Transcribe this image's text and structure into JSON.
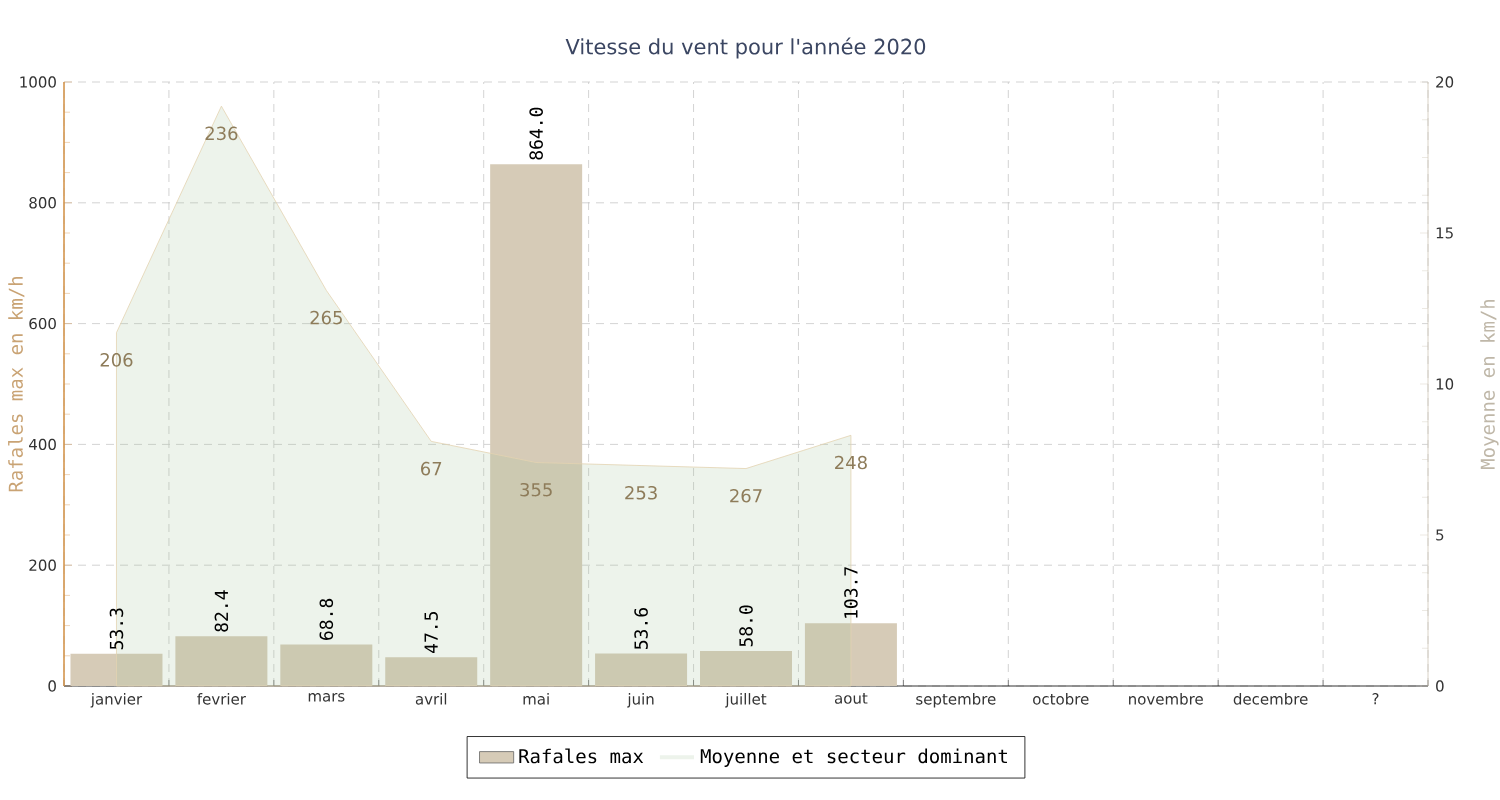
{
  "chart_data": {
    "type": "bar",
    "title": "Vitesse du vent pour l'année 2020",
    "ylabel": "Rafales max en km/h",
    "y2label": "Moyenne en km/h",
    "categories": [
      "janvier",
      "fevrier",
      "mars",
      "avril",
      "mai",
      "juin",
      "juillet",
      "aout",
      "septembre",
      "octobre",
      "novembre",
      "decembre",
      "?"
    ],
    "series": [
      {
        "name": "Rafales max",
        "color": "#d6cbb7",
        "values": [
          53.3,
          82.4,
          68.8,
          47.5,
          864.0,
          53.6,
          58.0,
          103.7,
          null,
          null,
          null,
          null,
          null
        ],
        "value_labels": [
          "53.3",
          "82.4",
          "68.8",
          "47.5",
          "864.0",
          "53.6",
          "58.0",
          "103.7",
          null,
          null,
          null,
          null,
          null
        ]
      },
      {
        "name": "Moyenne et secteur dominant",
        "type": "area",
        "axis": "y2",
        "color": "#edf3eb",
        "values": [
          11.7,
          19.2,
          13.1,
          8.1,
          7.4,
          7.3,
          7.2,
          8.3,
          null,
          null,
          null,
          null,
          null
        ]
      }
    ],
    "annotations": [
      {
        "text": "206",
        "x": "janvier",
        "y": 585
      },
      {
        "text": "236",
        "x": "fevrier",
        "y": 960
      },
      {
        "text": "265",
        "x": "mars",
        "y": 655
      },
      {
        "text": "67",
        "x": "avril",
        "y": 405
      },
      {
        "text": "355",
        "x": "mai",
        "y": 370
      },
      {
        "text": "253",
        "x": "juin",
        "y": 365
      },
      {
        "text": "267",
        "x": "juillet",
        "y": 360
      },
      {
        "text": "248",
        "x": "aout",
        "y": 415
      }
    ],
    "ylim": [
      0,
      1000
    ],
    "yticks": [
      0,
      200,
      400,
      600,
      800,
      1000
    ],
    "y2lim": [
      0,
      20
    ],
    "y2ticks": [
      0,
      5,
      10,
      15,
      20
    ],
    "grid": true,
    "legend": "bottom"
  }
}
